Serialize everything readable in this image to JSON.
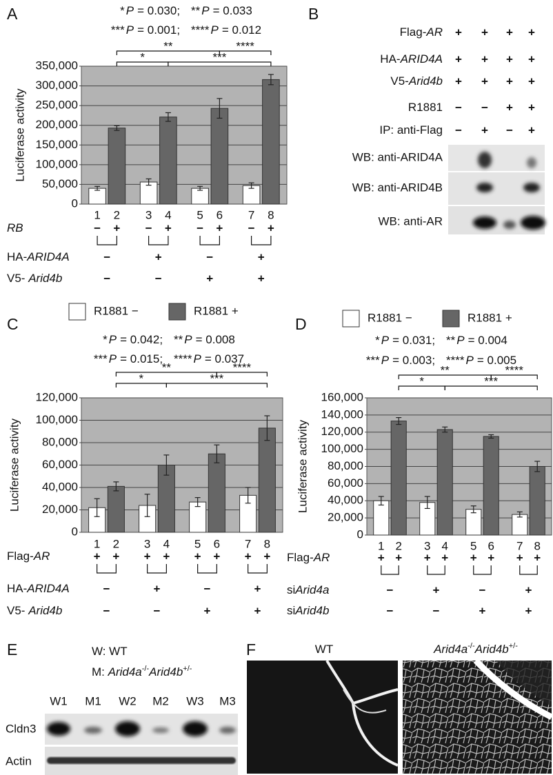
{
  "panel_labels": [
    "A",
    "B",
    "C",
    "D",
    "E",
    "F"
  ],
  "chart_data": [
    {
      "type": "bar",
      "y_label": "Luciferase activity",
      "ylim": [
        0,
        350000
      ],
      "yticks": [
        0,
        {
          "value": 50000,
          "label": "50,000"
        },
        {
          "value": 100000,
          "label": "100,000"
        },
        {
          "value": 150000,
          "label": "150,000"
        },
        {
          "value": 200000,
          "label": "200,000"
        },
        {
          "value": 250000,
          "label": "250,000"
        },
        {
          "value": 300000,
          "label": "300,000"
        },
        {
          "value": 350000,
          "label": "350,000"
        }
      ],
      "grid": true,
      "plot_background": "#b3b3b3",
      "x_labels": [
        "1",
        "2",
        "3",
        "4",
        "5",
        "6",
        "7",
        "8"
      ],
      "series": [
        {
          "color": "#ffffff",
          "values": [
            40000,
            56000,
            40000,
            47000
          ],
          "errors": [
            5000,
            8000,
            5000,
            7000
          ]
        },
        {
          "color": "#666666",
          "values": [
            193000,
            221000,
            243000,
            316000
          ],
          "errors": [
            6000,
            11000,
            25000,
            13000
          ]
        }
      ],
      "significance": [
        [
          {
            "stars": "*",
            "symbol": "P",
            "text": "= 0.030;"
          },
          {
            "stars": "**",
            "symbol": "P",
            "text": "= 0.033"
          }
        ],
        [
          {
            "stars": "***",
            "symbol": "P",
            "text": "= 0.001;"
          },
          {
            "stars": "****",
            "symbol": "P",
            "text": "= 0.012"
          }
        ]
      ],
      "comparisons": [
        {
          "label": "*",
          "from": 1,
          "to": 3
        },
        {
          "label": "**",
          "from": 1,
          "to": 5
        },
        {
          "label": "***",
          "from": 3,
          "to": 7
        },
        {
          "label": "****",
          "from": 5,
          "to": 7
        }
      ],
      "conditions": [
        {
          "label": [
            {
              "text": "RB",
              "italic": true
            }
          ],
          "signs": [
            "−",
            "+",
            "−",
            "+",
            "−",
            "+",
            "−",
            "+"
          ]
        },
        {
          "label": [
            {
              "text": "HA-"
            },
            {
              "text": "ARID4A",
              "italic": true
            }
          ],
          "signs": [
            "−",
            "+",
            "−",
            "+"
          ]
        },
        {
          "label": [
            {
              "text": "V5- "
            },
            {
              "text": "Arid4b",
              "italic": true
            }
          ],
          "signs": [
            "−",
            "−",
            "+",
            "+"
          ]
        }
      ]
    },
    {
      "type": "bar",
      "y_label": "Luciferase activity",
      "ylim": [
        0,
        120000
      ],
      "yticks": [
        0,
        {
          "value": 20000,
          "label": "20,000"
        },
        {
          "value": 40000,
          "label": "40,000"
        },
        {
          "value": 60000,
          "label": "60,000"
        },
        {
          "value": 80000,
          "label": "80,000"
        },
        {
          "value": 100000,
          "label": "100,000"
        },
        {
          "value": 120000,
          "label": "120,000"
        }
      ],
      "grid": true,
      "plot_background": "#b3b3b3",
      "x_labels": [
        "1",
        "2",
        "3",
        "4",
        "5",
        "6",
        "7",
        "8"
      ],
      "series": [
        {
          "name": "R1881 −",
          "color": "#ffffff",
          "values": [
            22000,
            24000,
            27000,
            33000
          ],
          "errors": [
            8000,
            10000,
            4000,
            7000
          ]
        },
        {
          "name": "R1881 +",
          "color": "#666666",
          "values": [
            41000,
            60000,
            70000,
            93000
          ],
          "errors": [
            4000,
            9000,
            8000,
            11000
          ]
        }
      ],
      "significance": [
        [
          {
            "stars": "*",
            "symbol": "P",
            "text": "= 0.042;"
          },
          {
            "stars": "**",
            "symbol": "P",
            "text": "= 0.008"
          }
        ],
        [
          {
            "stars": "***",
            "symbol": "P",
            "text": "= 0.015;"
          },
          {
            "stars": "****",
            "symbol": "P",
            "text": "= 0.037"
          }
        ]
      ],
      "comparisons": [
        {
          "label": "*",
          "from": 1,
          "to": 3
        },
        {
          "label": "**",
          "from": 1,
          "to": 5
        },
        {
          "label": "***",
          "from": 3,
          "to": 7
        },
        {
          "label": "****",
          "from": 5,
          "to": 7
        }
      ],
      "conditions": [
        {
          "label": [
            {
              "text": "Flag-"
            },
            {
              "text": "AR",
              "italic": true
            }
          ],
          "signs": [
            "+",
            "+",
            "+",
            "+",
            "+",
            "+",
            "+",
            "+"
          ]
        },
        {
          "label": [
            {
              "text": "HA-"
            },
            {
              "text": "ARID4A",
              "italic": true
            }
          ],
          "signs": [
            "−",
            "+",
            "−",
            "+"
          ]
        },
        {
          "label": [
            {
              "text": "V5- "
            },
            {
              "text": "Arid4b",
              "italic": true
            }
          ],
          "signs": [
            "−",
            "−",
            "+",
            "+"
          ]
        }
      ]
    },
    {
      "type": "bar",
      "y_label": "Luciferase activity",
      "ylim": [
        0,
        160000
      ],
      "yticks": [
        0,
        {
          "value": 20000,
          "label": "20,000"
        },
        {
          "value": 40000,
          "label": "40,000"
        },
        {
          "value": 60000,
          "label": "60,000"
        },
        {
          "value": 80000,
          "label": "80,000"
        },
        {
          "value": 100000,
          "label": "100,000"
        },
        {
          "value": 120000,
          "label": "120,000"
        },
        {
          "value": 140000,
          "label": "140,000"
        },
        {
          "value": 160000,
          "label": "160,000"
        }
      ],
      "grid": true,
      "plot_background": "#b3b3b3",
      "x_labels": [
        "1",
        "2",
        "3",
        "4",
        "5",
        "6",
        "7",
        "8"
      ],
      "series": [
        {
          "name": "R1881 −",
          "color": "#ffffff",
          "values": [
            40000,
            38000,
            30000,
            24000
          ],
          "errors": [
            5000,
            7000,
            4000,
            3000
          ]
        },
        {
          "name": "R1881 +",
          "color": "#666666",
          "values": [
            133000,
            123000,
            115000,
            80000
          ],
          "errors": [
            4000,
            3000,
            2000,
            6000
          ]
        }
      ],
      "significance": [
        [
          {
            "stars": "*",
            "symbol": "P",
            "text": "= 0.031;"
          },
          {
            "stars": "**",
            "symbol": "P",
            "text": "= 0.004"
          }
        ],
        [
          {
            "stars": "***",
            "symbol": "P",
            "text": "= 0.003;"
          },
          {
            "stars": "****",
            "symbol": "P",
            "text": "= 0.005"
          }
        ]
      ],
      "comparisons": [
        {
          "label": "*",
          "from": 1,
          "to": 3
        },
        {
          "label": "**",
          "from": 1,
          "to": 5
        },
        {
          "label": "***",
          "from": 3,
          "to": 7
        },
        {
          "label": "****",
          "from": 5,
          "to": 7
        }
      ],
      "conditions": [
        {
          "label": [
            {
              "text": "Flag-"
            },
            {
              "text": "AR",
              "italic": true
            }
          ],
          "signs": [
            "+",
            "+",
            "+",
            "+",
            "+",
            "+",
            "+",
            "+"
          ]
        },
        {
          "label": [
            {
              "text": "si"
            },
            {
              "text": "Arid4a",
              "italic": true
            }
          ],
          "signs": [
            "−",
            "+",
            "−",
            "+"
          ]
        },
        {
          "label": [
            {
              "text": "si"
            },
            {
              "text": "Arid4b",
              "italic": true
            }
          ],
          "signs": [
            "−",
            "−",
            "+",
            "+"
          ]
        }
      ]
    }
  ],
  "panel_b": {
    "conditions": [
      {
        "label": [
          {
            "text": "Flag-"
          },
          {
            "text": "AR",
            "italic": true
          }
        ],
        "signs": [
          "+",
          "+",
          "+",
          "+"
        ]
      },
      {
        "label": [
          {
            "text": "HA-"
          },
          {
            "text": "ARID4A",
            "italic": true
          }
        ],
        "signs": [
          "+",
          "+",
          "+",
          "+"
        ]
      },
      {
        "label": [
          {
            "text": "V5-"
          },
          {
            "text": "Arid4b",
            "italic": true
          }
        ],
        "signs": [
          "+",
          "+",
          "+",
          "+"
        ]
      },
      {
        "label": [
          {
            "text": "R1881"
          }
        ],
        "signs": [
          "−",
          "−",
          "+",
          "+"
        ]
      },
      {
        "label": [
          {
            "text": "IP: anti-Flag"
          }
        ],
        "signs": [
          "−",
          "+",
          "−",
          "+"
        ]
      }
    ],
    "blots": [
      "WB: anti-ARID4A",
      "WB: anti-ARID4B",
      "WB: anti-AR"
    ]
  },
  "panel_e": {
    "legend": [
      [
        {
          "text": "W: WT"
        }
      ],
      [
        {
          "text": "M: "
        },
        {
          "text": "Arid4a",
          "italic": true
        },
        {
          "text": "-/-",
          "sup": true
        },
        {
          "text": "Arid4b",
          "italic": true
        },
        {
          "text": "+/-",
          "sup": true
        }
      ]
    ],
    "lanes": [
      "W1",
      "M1",
      "W2",
      "M2",
      "W3",
      "M3"
    ],
    "blots": [
      "Cldn3",
      "Actin"
    ]
  },
  "panel_f": {
    "images": [
      [
        {
          "text": "WT"
        }
      ],
      [
        {
          "text": "Arid4a",
          "italic": true
        },
        {
          "text": "-/-",
          "sup": true
        },
        {
          "text": "Arid4b",
          "italic": true
        },
        {
          "text": "+/-",
          "sup": true
        }
      ]
    ]
  }
}
